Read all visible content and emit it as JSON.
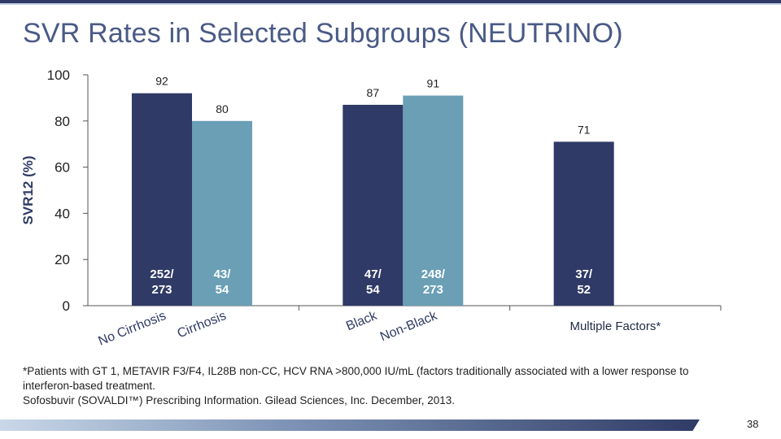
{
  "slide": {
    "title": "SVR Rates in Selected Subgroups (NEUTRINO)",
    "footnote_line1": "*Patients with GT 1, METAVIR F3/F4, IL28B non-CC, HCV RNA >800,000 IU/mL (factors traditionally associated with a lower response to interferon-based treatment.",
    "footnote_line2": "Sofosbuvir (SOVALDI™) Prescribing Information. Gilead Sciences, Inc. December, 2013.",
    "page_number": "38"
  },
  "colors": {
    "dark_bar": "#2f3a66",
    "light_bar": "#6a9fb6",
    "title": "#4a5a86"
  },
  "chart_data": {
    "type": "bar",
    "ylabel": "SVR12 (%)",
    "ylim": [
      0,
      100
    ],
    "yticks": [
      0,
      20,
      40,
      60,
      80,
      100
    ],
    "grid": false,
    "groups": [
      {
        "label": "",
        "bars": [
          {
            "category": "No Cirrhosis",
            "value": 92,
            "count": "252/\n273",
            "color": "dark"
          },
          {
            "category": "Cirrhosis",
            "value": 80,
            "count": "43/\n54",
            "color": "light"
          }
        ]
      },
      {
        "label": "",
        "bars": [
          {
            "category": "Black",
            "value": 87,
            "count": "47/\n54",
            "color": "dark"
          },
          {
            "category": "Non-Black",
            "value": 91,
            "count": "248/\n273",
            "color": "light"
          }
        ]
      },
      {
        "label": "Multiple Factors*",
        "bars": [
          {
            "category": "",
            "value": 71,
            "count": "37/\n52",
            "color": "dark"
          }
        ]
      }
    ]
  }
}
